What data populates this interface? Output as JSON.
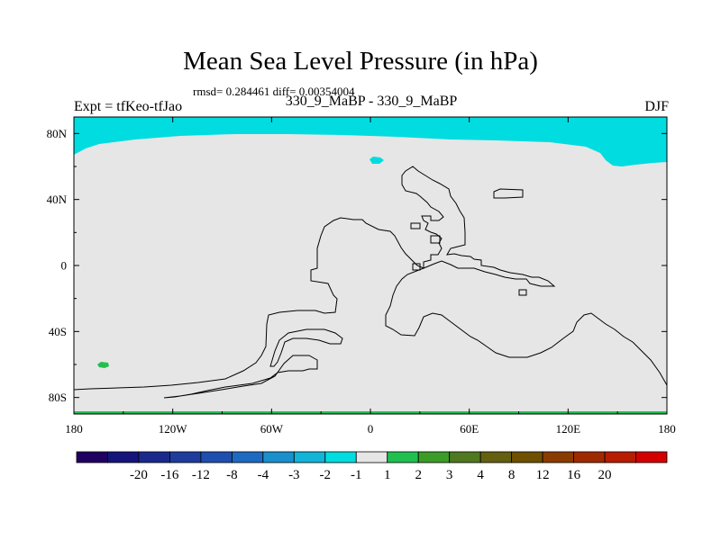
{
  "chart_data": {
    "type": "heatmap",
    "title": "Mean Sea Level Pressure (in hPa)",
    "stats_text": "rmsd= 0.284461 diff= 0.00354004",
    "left_label": "Expt = tfKeo-tfJao",
    "center_label": "330_9_MaBP - 330_9_MaBP",
    "right_label": "DJF",
    "projection": "cylindrical equidistant",
    "xlim": [
      -180,
      180
    ],
    "ylim": [
      -90,
      90
    ],
    "x_ticks": [
      {
        "value": -180,
        "label": "180"
      },
      {
        "value": -120,
        "label": "120W"
      },
      {
        "value": -60,
        "label": "60W"
      },
      {
        "value": 0,
        "label": "0"
      },
      {
        "value": 60,
        "label": "60E"
      },
      {
        "value": 120,
        "label": "120E"
      },
      {
        "value": 180,
        "label": "180"
      }
    ],
    "y_ticks": [
      {
        "value": 80,
        "label": "80N"
      },
      {
        "value": 40,
        "label": "40N"
      },
      {
        "value": 0,
        "label": "0"
      },
      {
        "value": -40,
        "label": "40S"
      },
      {
        "value": -80,
        "label": "80S"
      }
    ],
    "colorbar": {
      "colors": [
        "#200060",
        "#14147a",
        "#1a2a8c",
        "#1e3c9c",
        "#1f4fae",
        "#1e6ac0",
        "#1a90cc",
        "#12b4d8",
        "#00dce0",
        "#e6e6e6",
        "#20c050",
        "#3c9c28",
        "#507820",
        "#646010",
        "#6e5000",
        "#8a3c00",
        "#a02a00",
        "#b81c00",
        "#d40000"
      ],
      "labels": [
        "-20",
        "-16",
        "-12",
        "-8",
        "-4",
        "-3",
        "-2",
        "-1",
        "1",
        "2",
        "3",
        "4",
        "8",
        "12",
        "16",
        "20"
      ]
    },
    "background_value_range": "-1 to 1",
    "regions": [
      {
        "name": "arctic-negative-band",
        "level_range": "-2 to -1",
        "color": "#00dce0",
        "lat_range": [
          68,
          90
        ],
        "lon_range": [
          -180,
          180
        ]
      },
      {
        "name": "north-atlantic-negative-patch",
        "level_range": "-2 to -1",
        "color": "#00dce0",
        "lat": 65,
        "lon": 3
      },
      {
        "name": "south-pacific-positive-patch",
        "level_range": "1 to 2",
        "color": "#20c050",
        "lat": -60,
        "lon": -158
      },
      {
        "name": "antarctic-positive-strip",
        "level_range": "1 to 2",
        "color": "#20c050",
        "lat_range": [
          -90,
          -88.5
        ],
        "lon_range": [
          -180,
          180
        ]
      }
    ]
  }
}
